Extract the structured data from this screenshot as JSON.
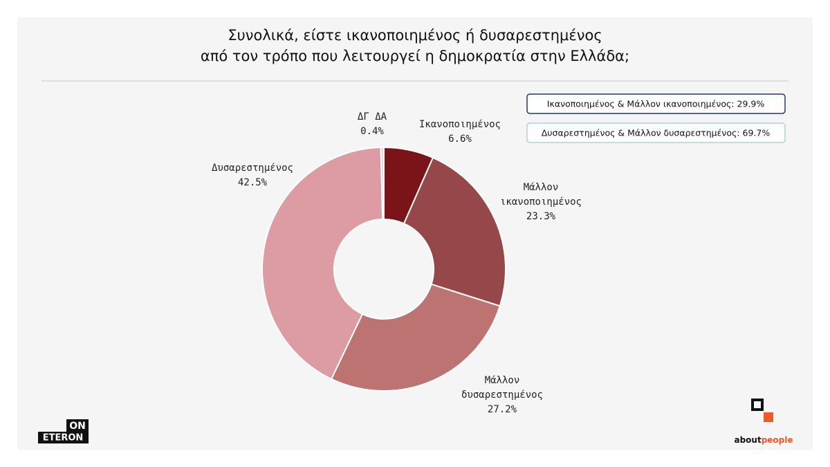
{
  "chart_data": {
    "type": "donut",
    "title": [
      "Συνολικά, είστε ικανοποιημένος ή δυσαρεστημένος",
      "από τον τρόπο που λειτουργεί η δημοκρατία στην Ελλάδα;"
    ],
    "categories": [
      "Ικανοποιημένος",
      "Μάλλον\nικανοποιημένος",
      "Μάλλον\nδυσαρεστημένος",
      "Δυσαρεστημένος",
      "ΔΓ ΔΑ"
    ],
    "values": [
      6.6,
      23.3,
      27.2,
      42.5,
      0.4
    ],
    "value_labels": [
      "6.6%",
      "23.3%",
      "27.2%",
      "42.5%",
      "0.4%"
    ],
    "colors": [
      "#7a1418",
      "#95474a",
      "#bd7372",
      "#dd9ba3",
      "#ead0d3"
    ],
    "annotations": [
      "Ικανοποιημένος & Μάλλον ικανοποιημένος: 29.9%",
      "Δυσαρεστημένος & Μάλλον δυσαρεστημένος: 69.7%"
    ]
  },
  "logos": {
    "eteron": [
      "ON",
      "ETERON"
    ],
    "aboutpeople": [
      "about",
      "people"
    ]
  }
}
